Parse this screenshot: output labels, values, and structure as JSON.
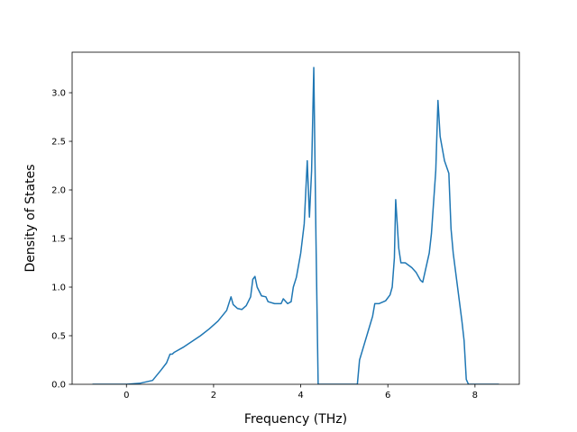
{
  "chart_data": {
    "type": "line",
    "xlabel": "Frequency (THz)",
    "ylabel": "Density of States",
    "xlim": [
      -1.247,
      9.017
    ],
    "ylim": [
      0,
      3.417
    ],
    "xticks": [
      0,
      2,
      4,
      6,
      8
    ],
    "yticks": [
      {
        "value": 0,
        "label": "0.0"
      },
      {
        "value": 0.5,
        "label": "0.5"
      },
      {
        "value": 1,
        "label": "1.0"
      },
      {
        "value": 1.5,
        "label": "1.5"
      },
      {
        "value": 2,
        "label": "2.0"
      },
      {
        "value": 2.5,
        "label": "2.5"
      },
      {
        "value": 3,
        "label": "3.0"
      }
    ],
    "series": [
      {
        "color": "#1f77b4",
        "x": [
          -0.78,
          0,
          0.3,
          0.6,
          0.8,
          0.92,
          1.0,
          1.05,
          1.1,
          1.3,
          1.5,
          1.7,
          1.9,
          2.1,
          2.3,
          2.4,
          2.45,
          2.55,
          2.65,
          2.75,
          2.85,
          2.9,
          2.95,
          3.0,
          3.1,
          3.2,
          3.25,
          3.4,
          3.55,
          3.6,
          3.7,
          3.78,
          3.83,
          3.9,
          4.0,
          4.08,
          4.15,
          4.2,
          4.25,
          4.3,
          4.35,
          4.4,
          5.3,
          5.35,
          5.45,
          5.55,
          5.65,
          5.7,
          5.8,
          5.95,
          6.05,
          6.1,
          6.15,
          6.18,
          6.25,
          6.3,
          6.4,
          6.55,
          6.65,
          6.75,
          6.8,
          6.85,
          6.95,
          7.0,
          7.1,
          7.15,
          7.2,
          7.3,
          7.4,
          7.45,
          7.5,
          7.6,
          7.7,
          7.75,
          7.8,
          7.85,
          8.55
        ],
        "values": [
          0,
          0,
          0.01,
          0.04,
          0.15,
          0.22,
          0.31,
          0.31,
          0.33,
          0.38,
          0.44,
          0.5,
          0.57,
          0.65,
          0.76,
          0.9,
          0.82,
          0.78,
          0.77,
          0.81,
          0.9,
          1.08,
          1.11,
          1.0,
          0.91,
          0.9,
          0.85,
          0.83,
          0.83,
          0.88,
          0.83,
          0.85,
          1.0,
          1.1,
          1.35,
          1.65,
          2.3,
          1.72,
          2.2,
          3.26,
          1.5,
          0,
          0,
          0.25,
          0.4,
          0.55,
          0.7,
          0.83,
          0.83,
          0.86,
          0.92,
          1.0,
          1.3,
          1.9,
          1.4,
          1.25,
          1.25,
          1.2,
          1.15,
          1.07,
          1.05,
          1.15,
          1.35,
          1.55,
          2.2,
          2.92,
          2.55,
          2.3,
          2.17,
          1.6,
          1.35,
          1.0,
          0.65,
          0.45,
          0.05,
          0,
          0
        ]
      }
    ]
  }
}
